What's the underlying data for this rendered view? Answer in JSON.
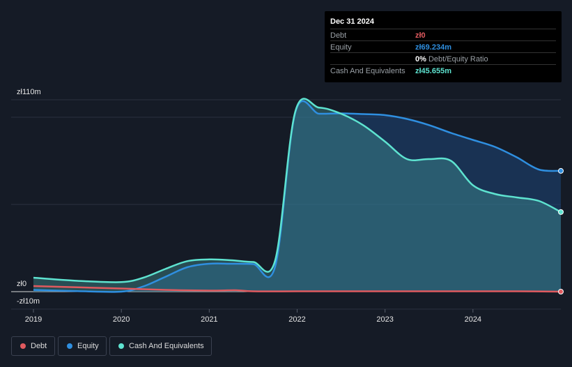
{
  "tooltip": {
    "date": "Dec 31 2024",
    "debt_label": "Debt",
    "debt_value": "zł0",
    "equity_label": "Equity",
    "equity_value": "zł69.234m",
    "ratio_value": "0%",
    "ratio_label": "Debt/Equity Ratio",
    "cash_label": "Cash And Equivalents",
    "cash_value": "zł45.655m"
  },
  "legend": {
    "debt": "Debt",
    "equity": "Equity",
    "cash": "Cash And Equivalents"
  },
  "colors": {
    "debt": "#e05a5f",
    "equity": "#2f8fe0",
    "cash": "#5ee3d0",
    "background": "#151b26"
  },
  "chart_data": {
    "type": "area",
    "y_axis_labels": [
      "zł110m",
      "zł0",
      "-zł10m"
    ],
    "x_tick_labels": [
      "2019",
      "2020",
      "2021",
      "2022",
      "2023",
      "2024"
    ],
    "xlim": [
      2019.0,
      2025.0
    ],
    "ylim": [
      -10,
      110
    ],
    "series": [
      {
        "name": "Debt",
        "color": "#e05a5f",
        "x": [
          2019.0,
          2019.5,
          2020.0,
          2020.5,
          2021.0,
          2021.3,
          2021.5,
          2022.0,
          2022.5,
          2023.0,
          2023.5,
          2024.0,
          2024.5,
          2025.0
        ],
        "y": [
          3.2,
          2.5,
          1.8,
          1.0,
          0.6,
          0.8,
          0.2,
          0.2,
          0.2,
          0.2,
          0.2,
          0.2,
          0.2,
          0.0
        ]
      },
      {
        "name": "Equity",
        "color": "#2f8fe0",
        "x": [
          2019.0,
          2019.5,
          2020.0,
          2020.25,
          2020.5,
          2020.75,
          2021.0,
          2021.25,
          2021.5,
          2021.75,
          2021.98,
          2022.25,
          2022.5,
          2022.75,
          2023.0,
          2023.25,
          2023.5,
          2023.75,
          2024.0,
          2024.25,
          2024.5,
          2024.75,
          2025.0
        ],
        "y": [
          1.0,
          0.3,
          0.0,
          3.0,
          8.5,
          14.0,
          16.0,
          16.0,
          15.8,
          14.5,
          103.0,
          102.0,
          102.2,
          101.8,
          101.2,
          99.0,
          95.5,
          91.0,
          87.0,
          83.0,
          77.0,
          70.0,
          69.234
        ]
      },
      {
        "name": "Cash And Equivalents",
        "color": "#5ee3d0",
        "x": [
          2019.0,
          2019.5,
          2020.0,
          2020.25,
          2020.5,
          2020.75,
          2021.0,
          2021.25,
          2021.5,
          2021.75,
          2021.98,
          2022.25,
          2022.5,
          2022.75,
          2023.0,
          2023.25,
          2023.5,
          2023.75,
          2024.0,
          2024.25,
          2024.5,
          2024.75,
          2025.0
        ],
        "y": [
          8.0,
          6.2,
          5.5,
          8.0,
          13.0,
          17.5,
          18.5,
          18.0,
          17.0,
          18.0,
          103.5,
          105.5,
          102.0,
          95.5,
          86.0,
          76.0,
          76.0,
          75.0,
          61.0,
          56.0,
          54.0,
          52.0,
          45.655
        ]
      }
    ]
  }
}
